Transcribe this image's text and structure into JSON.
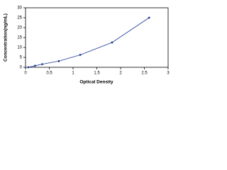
{
  "chart_data": {
    "type": "scatter",
    "x_label": "Optical Density",
    "y_label": "Concentration(ng/mL)",
    "series": [
      {
        "color": "#1f3a93",
        "x": [
          0.06,
          0.2,
          0.35,
          0.7,
          1.15,
          1.82,
          2.6
        ],
        "values": [
          0,
          0.78,
          1.56,
          3.12,
          6.25,
          12.5,
          25
        ]
      }
    ],
    "xlim": [
      0,
      3
    ],
    "xticks": [
      0,
      0.5,
      1,
      1.5,
      2,
      2.5,
      3
    ],
    "ylim": [
      0,
      30
    ],
    "yticks": [
      0,
      5,
      10,
      15,
      20,
      25,
      30
    ]
  }
}
